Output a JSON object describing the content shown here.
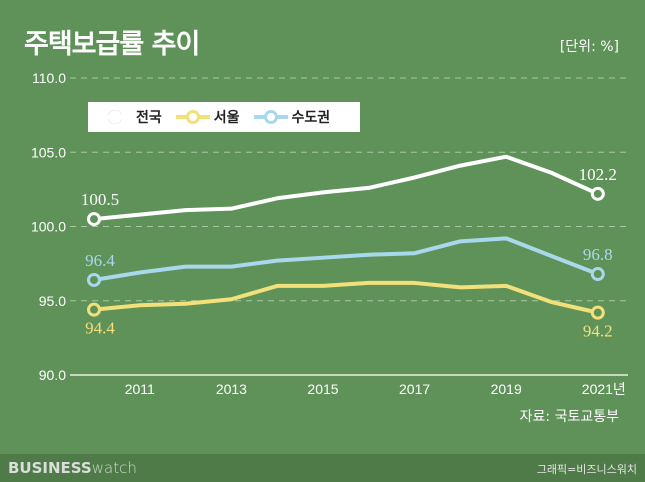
{
  "title": "주택보급률 추이",
  "unit": "[단위: %]",
  "source": "자료: 국토교통부",
  "footer": {
    "brand_bold": "BUSINESS",
    "brand_light": "watch",
    "credit": "그래픽=비즈니스워치"
  },
  "chart_data": {
    "type": "line",
    "x": [
      2010,
      2011,
      2012,
      2013,
      2014,
      2015,
      2016,
      2017,
      2018,
      2019,
      2020,
      2021
    ],
    "xticks": [
      "2011",
      "2013",
      "2015",
      "2017",
      "2019",
      "2021년"
    ],
    "yticks": [
      "90.0",
      "95.0",
      "100.0",
      "105.0",
      "110.0"
    ],
    "ylim": [
      90,
      110
    ],
    "grid": true,
    "legend": "top-left",
    "series": [
      {
        "name": "전국",
        "color": "#ffffff",
        "values": [
          100.5,
          100.8,
          101.1,
          101.2,
          101.9,
          102.3,
          102.6,
          103.3,
          104.1,
          104.7,
          103.6,
          102.2
        ],
        "labels": [
          "100.5",
          "102.2"
        ]
      },
      {
        "name": "서울",
        "color": "#f2e07a",
        "values": [
          94.4,
          94.7,
          94.8,
          95.1,
          96.0,
          96.0,
          96.2,
          96.2,
          95.9,
          96.0,
          94.9,
          94.2
        ],
        "labels": [
          "94.4",
          "94.2"
        ]
      },
      {
        "name": "수도권",
        "color": "#a8d8ec",
        "values": [
          96.4,
          96.9,
          97.3,
          97.3,
          97.7,
          97.9,
          98.1,
          98.2,
          99.0,
          99.2,
          98.0,
          96.8
        ],
        "labels": [
          "96.4",
          "96.8"
        ]
      }
    ]
  }
}
